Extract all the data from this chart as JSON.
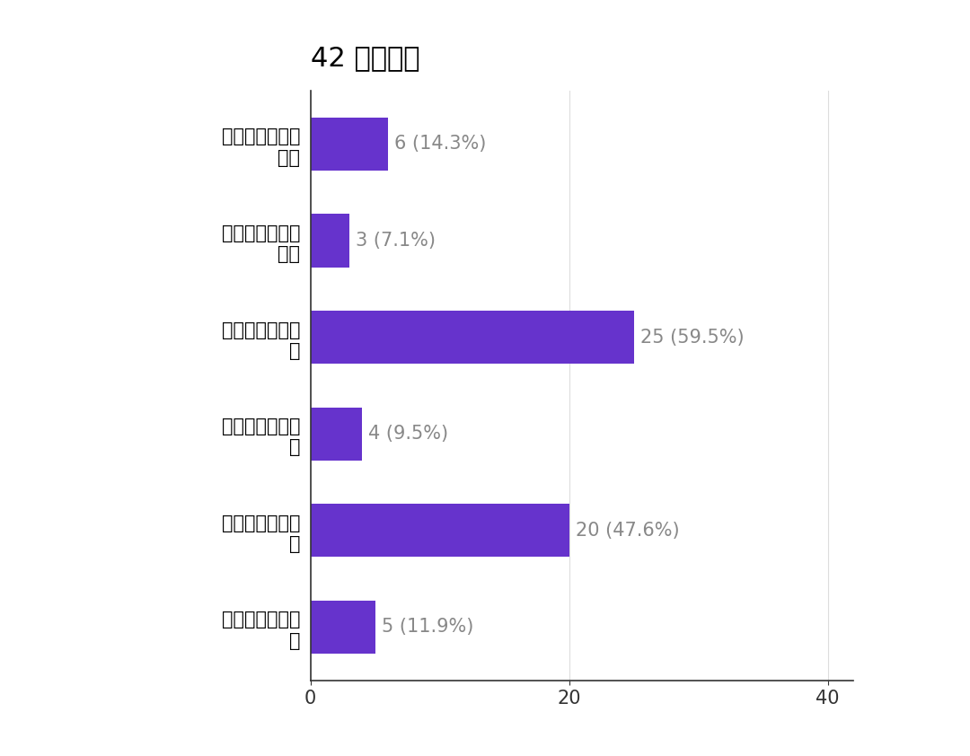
{
  "title": "42 件の回答",
  "categories": [
    "とくに気にして\nない",
    "自分のペニスが\n誇り",
    "短くて悩んでい\nる",
    "長くて悩んでい\nる",
    "細くて悩んでい\nる",
    "太くて悩んでい\nる"
  ],
  "values": [
    6,
    3,
    25,
    4,
    20,
    5
  ],
  "labels": [
    "6 (14.3%)",
    "3 (7.1%)",
    "25 (59.5%)",
    "4 (9.5%)",
    "20 (47.6%)",
    "5 (11.9%)"
  ],
  "bar_color": "#6633cc",
  "background_color": "#ffffff",
  "xlim": [
    0,
    42
  ],
  "xticks": [
    0,
    20,
    40
  ],
  "title_fontsize": 22,
  "label_fontsize": 15,
  "tick_fontsize": 15,
  "bar_height": 0.55
}
